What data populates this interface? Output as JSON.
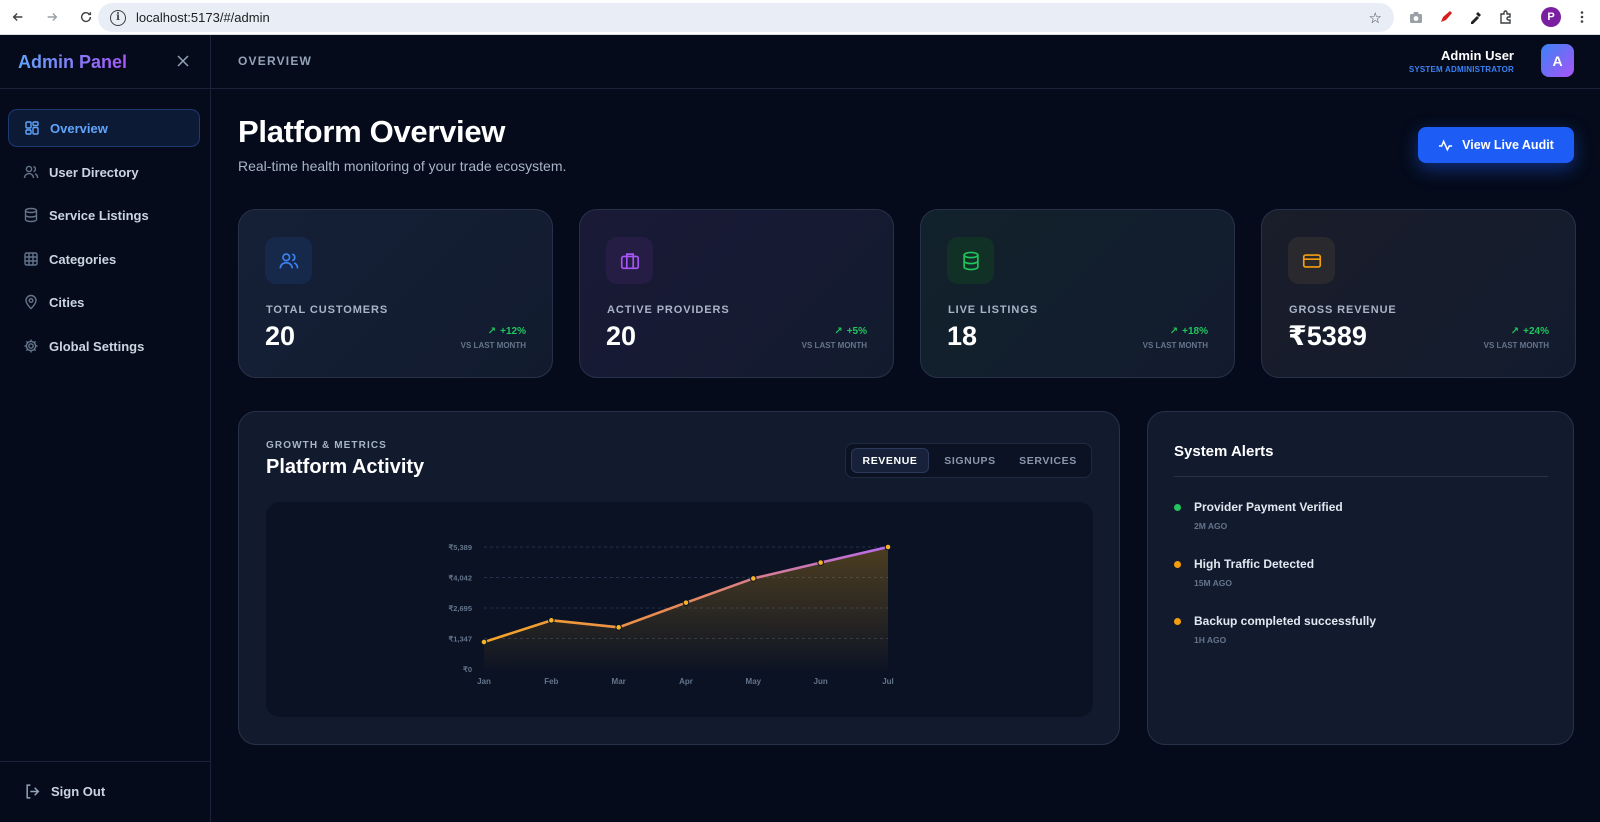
{
  "browser": {
    "url": "localhost:5173/#/admin",
    "profile_initial": "P"
  },
  "sidebar": {
    "brand": "Admin Panel",
    "items": [
      {
        "label": "Overview",
        "icon": "grid-icon",
        "active": true
      },
      {
        "label": "User Directory",
        "icon": "users-icon",
        "active": false
      },
      {
        "label": "Service Listings",
        "icon": "database-icon",
        "active": false
      },
      {
        "label": "Categories",
        "icon": "table-icon",
        "active": false
      },
      {
        "label": "Cities",
        "icon": "map-pin-icon",
        "active": false
      },
      {
        "label": "Global Settings",
        "icon": "gear-icon",
        "active": false
      }
    ],
    "sign_out": "Sign Out"
  },
  "header": {
    "breadcrumb": "OVERVIEW",
    "user_name": "Admin User",
    "user_role": "SYSTEM ADMINISTRATOR",
    "avatar_initial": "A"
  },
  "main": {
    "title": "Platform Overview",
    "subtitle": "Real-time health monitoring of your trade ecosystem.",
    "audit_button": "View Live Audit"
  },
  "stats": [
    {
      "label": "TOTAL CUSTOMERS",
      "value": "20",
      "delta": "+12%",
      "vs": "VS LAST MONTH",
      "icon": "users-icon",
      "accent": "#3b82f6"
    },
    {
      "label": "ACTIVE PROVIDERS",
      "value": "20",
      "delta": "+5%",
      "vs": "VS LAST MONTH",
      "icon": "briefcase-icon",
      "accent": "#a855f7"
    },
    {
      "label": "LIVE LISTINGS",
      "value": "18",
      "delta": "+18%",
      "vs": "VS LAST MONTH",
      "icon": "database-icon",
      "accent": "#22c55e"
    },
    {
      "label": "GROSS REVENUE",
      "value": "₹5389",
      "delta": "+24%",
      "vs": "VS LAST MONTH",
      "icon": "credit-card-icon",
      "accent": "#f59e0b"
    }
  ],
  "activity": {
    "eyebrow": "GROWTH & METRICS",
    "title": "Platform Activity",
    "tabs": [
      {
        "label": "REVENUE",
        "active": true
      },
      {
        "label": "SIGNUPS",
        "active": false
      },
      {
        "label": "SERVICES",
        "active": false
      }
    ]
  },
  "chart_data": {
    "type": "area",
    "categories": [
      "Jan",
      "Feb",
      "Mar",
      "Apr",
      "May",
      "Jun",
      "Jul"
    ],
    "values": [
      1190,
      2150,
      1840,
      2930,
      4000,
      4700,
      5389
    ],
    "ylim": [
      0,
      5389
    ],
    "y_ticks": [
      "₹0",
      "₹1,347",
      "₹2,695",
      "₹4,042",
      "₹5,389"
    ],
    "grid": true,
    "line_colors": [
      "#f59e0b",
      "#a855f7"
    ]
  },
  "alerts": {
    "title": "System Alerts",
    "items": [
      {
        "message": "Provider Payment Verified",
        "time": "2M AGO",
        "color": "#22c55e"
      },
      {
        "message": "High Traffic Detected",
        "time": "15M AGO",
        "color": "#f59e0b"
      },
      {
        "message": "Backup completed successfully",
        "time": "1H AGO",
        "color": "#f59e0b"
      }
    ]
  }
}
